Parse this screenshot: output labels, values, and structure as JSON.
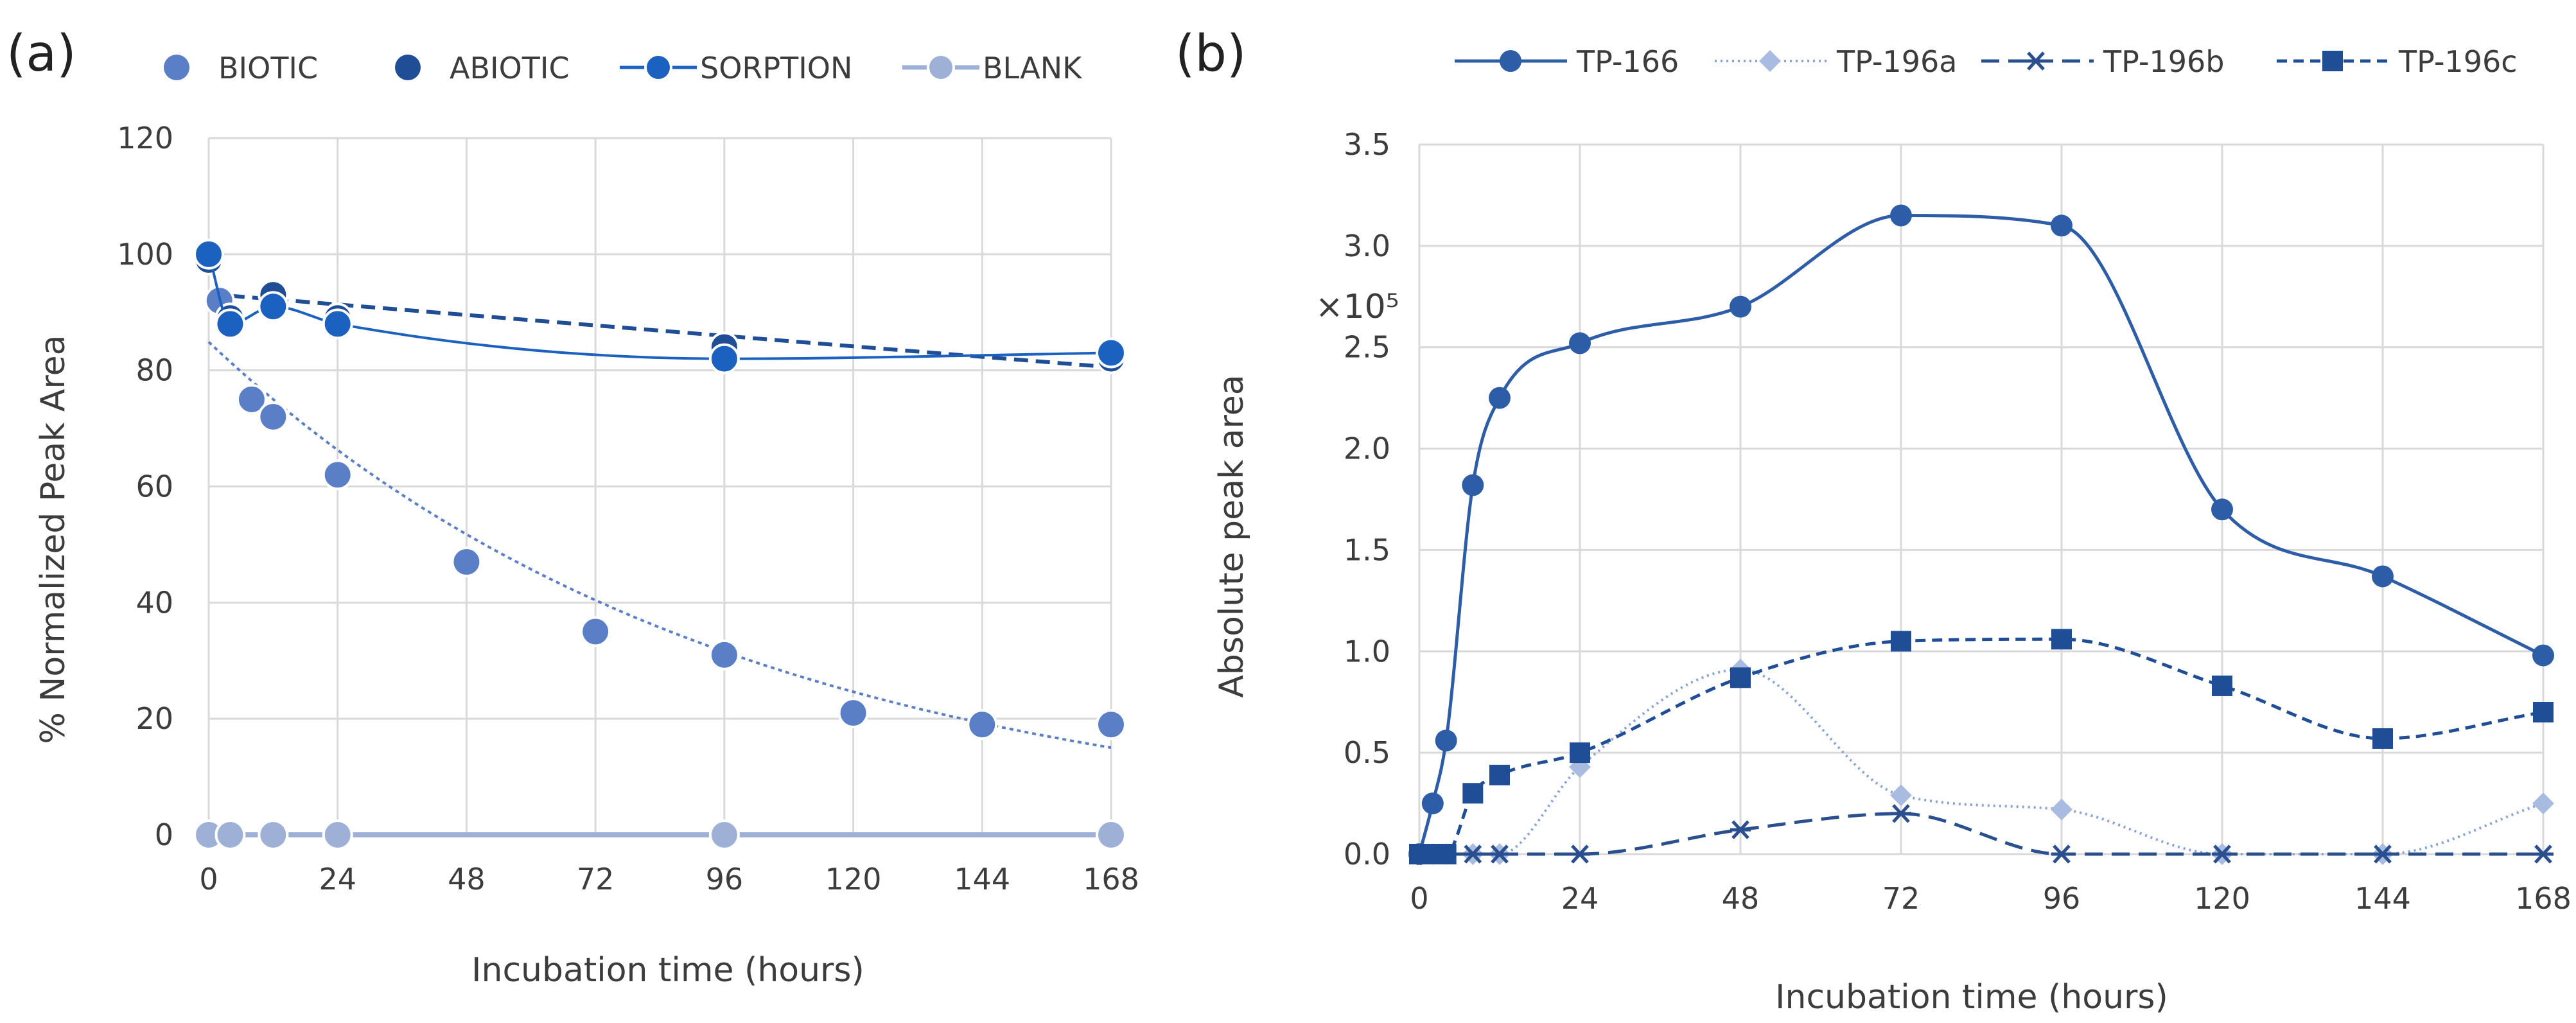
{
  "chart_data": [
    {
      "panel": "(a)",
      "type": "scatter",
      "xlabel": "Incubation time (hours)",
      "ylabel": "% Normalized Peak Area",
      "xlim": [
        0,
        168
      ],
      "ylim": [
        0,
        120
      ],
      "xticks": [
        "0",
        "24",
        "48",
        "72",
        "96",
        "120",
        "144",
        "168"
      ],
      "yticks": [
        "0",
        "20",
        "40",
        "60",
        "80",
        "100",
        "120"
      ],
      "grid": true,
      "legend_position": "top",
      "series": [
        {
          "name": "BIOTIC",
          "color": "#5b7fc7",
          "style": "markers",
          "trend": "exponential-dotted",
          "x": [
            0,
            2,
            4,
            8,
            12,
            24,
            48,
            72,
            96,
            120,
            144,
            168
          ],
          "y": [
            99,
            92,
            89,
            75,
            72,
            62,
            47,
            35,
            31,
            21,
            19,
            19
          ]
        },
        {
          "name": "ABIOTIC",
          "color": "#1f4e96",
          "style": "markers",
          "trend": "linear-dashed",
          "x": [
            0,
            4,
            12,
            24,
            96,
            168
          ],
          "y": [
            99,
            89,
            93,
            89,
            84,
            82
          ]
        },
        {
          "name": "SORPTION",
          "color": "#1b62c0",
          "style": "line-markers",
          "x": [
            0,
            4,
            12,
            24,
            96,
            168
          ],
          "y": [
            100,
            88,
            91,
            88,
            82,
            83
          ]
        },
        {
          "name": "BLANK",
          "color": "#9fb0d6",
          "style": "line-markers",
          "x": [
            0,
            4,
            12,
            24,
            96,
            168
          ],
          "y": [
            0,
            0,
            0,
            0,
            0,
            0
          ]
        }
      ]
    },
    {
      "panel": "(b)",
      "type": "line",
      "xlabel": "Incubation time (hours)",
      "ylabel": "Absolute peak area",
      "y_multiplier": "×10⁵",
      "xlim": [
        0,
        168
      ],
      "ylim": [
        0,
        3.5
      ],
      "xticks": [
        "0",
        "24",
        "48",
        "72",
        "96",
        "120",
        "144",
        "168"
      ],
      "yticks": [
        "0.0",
        "0.5",
        "1.0",
        "1.5",
        "2.0",
        "2.5",
        "3.0",
        "3.5"
      ],
      "grid": true,
      "legend_position": "top",
      "series": [
        {
          "name": "TP-166",
          "color": "#2e5da8",
          "dash": "solid",
          "marker": "circle",
          "x": [
            0,
            2,
            4,
            8,
            12,
            24,
            48,
            72,
            96,
            120,
            144,
            168
          ],
          "y": [
            0.0,
            0.25,
            0.56,
            1.82,
            2.25,
            2.52,
            2.7,
            3.15,
            3.1,
            1.7,
            1.37,
            0.98
          ]
        },
        {
          "name": "TP-196a",
          "color": "#8aa3d4",
          "dash": "dotted",
          "marker": "diamond",
          "x": [
            0,
            2,
            4,
            8,
            12,
            24,
            48,
            72,
            96,
            120,
            144,
            168
          ],
          "y": [
            0.0,
            0.0,
            0.0,
            0.0,
            0.0,
            0.43,
            0.91,
            0.29,
            0.22,
            0.0,
            0.0,
            0.25
          ]
        },
        {
          "name": "TP-196b",
          "color": "#2a4f8f",
          "dash": "longdash",
          "marker": "asterisk",
          "x": [
            0,
            2,
            4,
            8,
            12,
            24,
            48,
            72,
            96,
            120,
            144,
            168
          ],
          "y": [
            0.0,
            0.0,
            0.0,
            0.0,
            0.0,
            0.0,
            0.12,
            0.2,
            0.0,
            0.0,
            0.0,
            0.0
          ]
        },
        {
          "name": "TP-196c",
          "color": "#1f4e96",
          "dash": "dashed",
          "marker": "square",
          "x": [
            0,
            2,
            4,
            8,
            12,
            24,
            48,
            72,
            96,
            120,
            144,
            168
          ],
          "y": [
            0.0,
            0.0,
            0.0,
            0.3,
            0.39,
            0.5,
            0.87,
            1.05,
            1.06,
            0.83,
            0.57,
            0.7
          ]
        }
      ]
    }
  ]
}
